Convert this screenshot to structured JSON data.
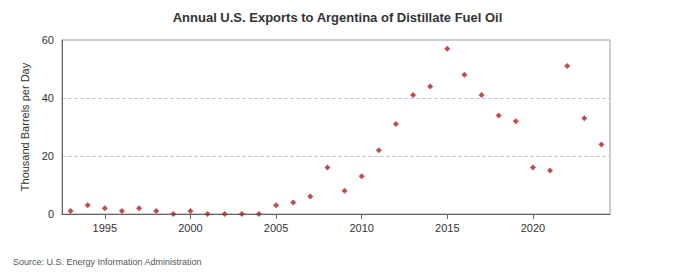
{
  "chart_data": {
    "type": "scatter",
    "title": "Annual U.S. Exports to Argentina of Distillate Fuel Oil",
    "y_label": "Thousand Barrels per Day",
    "source": "Source: U.S. Energy Information Administration",
    "x": [
      1993,
      1994,
      1995,
      1996,
      1997,
      1998,
      1999,
      2000,
      2001,
      2002,
      2003,
      2004,
      2005,
      2006,
      2007,
      2008,
      2009,
      2010,
      2011,
      2012,
      2013,
      2014,
      2015,
      2016,
      2017,
      2018,
      2019,
      2020,
      2021,
      2022,
      2023,
      2024
    ],
    "values": [
      1,
      3,
      2,
      1,
      2,
      1,
      0,
      1,
      0,
      0,
      0,
      0,
      3,
      4,
      6,
      16,
      8,
      13,
      22,
      31,
      41,
      44,
      57,
      48,
      41,
      34,
      32,
      16,
      15,
      51,
      33,
      24
    ],
    "color": "#b22222",
    "marker": "diamond",
    "xlim": [
      1992.5,
      2024.5
    ],
    "xticks": [
      1995,
      2000,
      2005,
      2010,
      2015,
      2020
    ],
    "ylim": [
      0,
      60
    ],
    "yticks": [
      0,
      20,
      40,
      60
    ],
    "grid": true
  }
}
